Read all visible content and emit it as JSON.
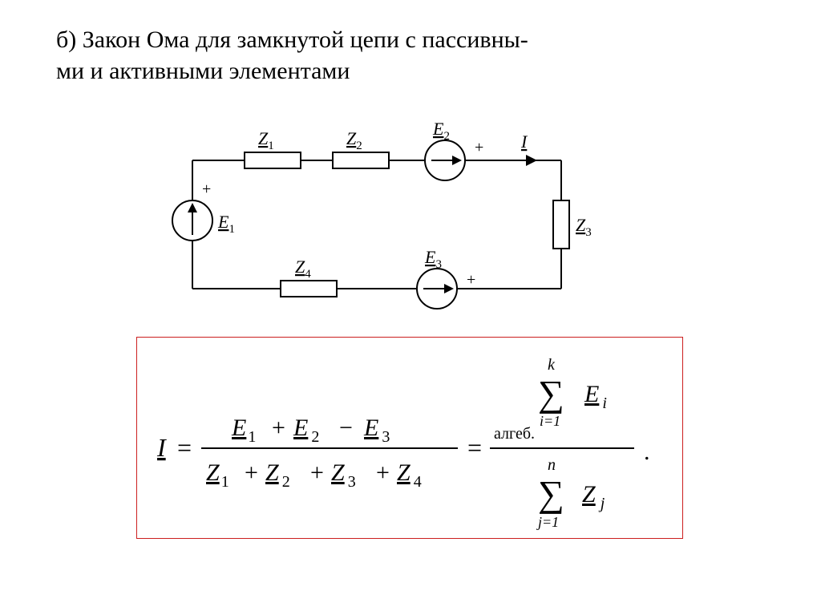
{
  "title": "б) Закон Ома для замкнутой цепи с пассивны-\nми и активными элементами",
  "circuit": {
    "stroke": "#000000",
    "line_width": 2,
    "labels": {
      "Z1": "Z",
      "Z1_sub": "1",
      "Z2": "Z",
      "Z2_sub": "2",
      "Z3": "Z",
      "Z3_sub": "3",
      "Z4": "Z",
      "Z4_sub": "4",
      "E1": "E",
      "E1_sub": "1",
      "E2": "E",
      "E2_sub": "2",
      "E3": "E",
      "E3_sub": "3",
      "I": "I",
      "plus": "+"
    }
  },
  "formula": {
    "border_color": "#cc1f1f",
    "I": "I",
    "eq": "=",
    "E": "E",
    "Z": "Z",
    "s1": "1",
    "s2": "2",
    "s3": "3",
    "s4": "4",
    "plus": "+",
    "minus": "−",
    "Sigma": "∑",
    "k": "k",
    "n": "n",
    "i": "i",
    "j": "j",
    "i_eq_1": "i=1",
    "j_eq_1": "j=1",
    "algeb": "алгеб.",
    "dot": "."
  }
}
